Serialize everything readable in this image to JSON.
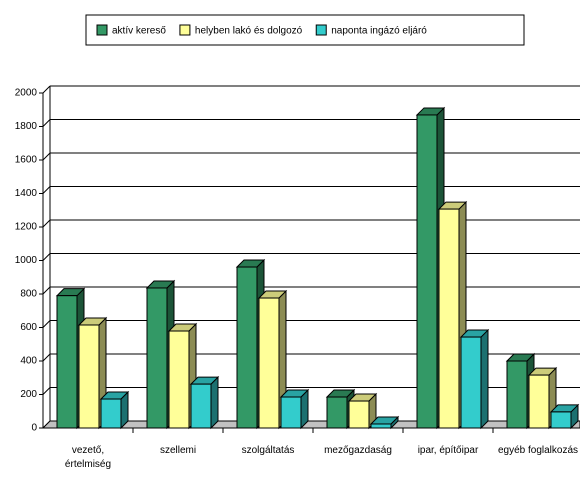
{
  "chart_data": {
    "type": "bar3d",
    "legend": "top",
    "categories": [
      "vezető,\nértelmiség",
      "szellemi",
      "szolgáltatás",
      "mezőgazdaság",
      "ipar, építőipar",
      "egyéb foglalkozás"
    ],
    "series": [
      {
        "name": "aktív kereső",
        "color": "#339966",
        "values": [
          790,
          836,
          961,
          185,
          1869,
          400
        ]
      },
      {
        "name": "helyben lakó és dolgozó",
        "color": "#ffff99",
        "values": [
          615,
          579,
          776,
          161,
          1307,
          316
        ]
      },
      {
        "name": "naponta  ingázó eljáró",
        "color": "#33cccc",
        "values": [
          173,
          262,
          185,
          24,
          543,
          96
        ]
      }
    ],
    "ylim": [
      0,
      2000
    ],
    "yticks": [
      0,
      200,
      400,
      600,
      800,
      1000,
      1200,
      1400,
      1600,
      1800,
      2000
    ],
    "grid": true
  }
}
